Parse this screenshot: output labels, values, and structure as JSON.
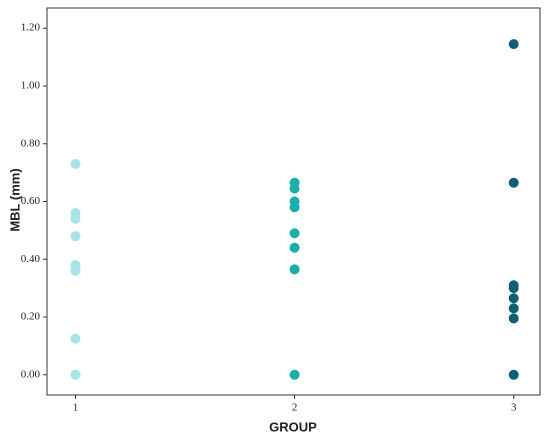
{
  "chart_data": {
    "type": "scatter",
    "x_label": "GROUP",
    "y_label": "MBL (mm)",
    "xlim": [
      0.87,
      3.12
    ],
    "xticks": [
      1,
      2,
      3
    ],
    "ylim": [
      -0.07,
      1.27
    ],
    "yticks": [
      {
        "value": 0,
        "label": "0.00"
      },
      {
        "value": 0.2,
        "label": "0.20"
      },
      {
        "value": 0.4,
        "label": "0.40"
      },
      {
        "value": 0.6,
        "label": "0.60"
      },
      {
        "value": 0.8,
        "label": "0.80"
      },
      {
        "value": 1.0,
        "label": "1.00"
      },
      {
        "value": 1.2,
        "label": "1.20"
      }
    ],
    "grid": false,
    "series": [
      {
        "color": "#a8e4e6",
        "x": [
          1,
          1,
          1,
          1,
          1,
          1,
          1,
          1
        ],
        "values": [
          0.73,
          0.56,
          0.54,
          0.48,
          0.38,
          0.36,
          0.125,
          0
        ]
      },
      {
        "color": "#1aada9",
        "x": [
          2,
          2,
          2,
          2,
          2,
          2,
          2,
          2
        ],
        "values": [
          0.665,
          0.645,
          0.6,
          0.58,
          0.49,
          0.44,
          0.365,
          0
        ]
      },
      {
        "color": "#0e5f73",
        "x": [
          3,
          3,
          3,
          3,
          3,
          3,
          3,
          3
        ],
        "values": [
          1.145,
          0.665,
          0.31,
          0.3,
          0.265,
          0.23,
          0.195,
          0
        ]
      }
    ]
  }
}
